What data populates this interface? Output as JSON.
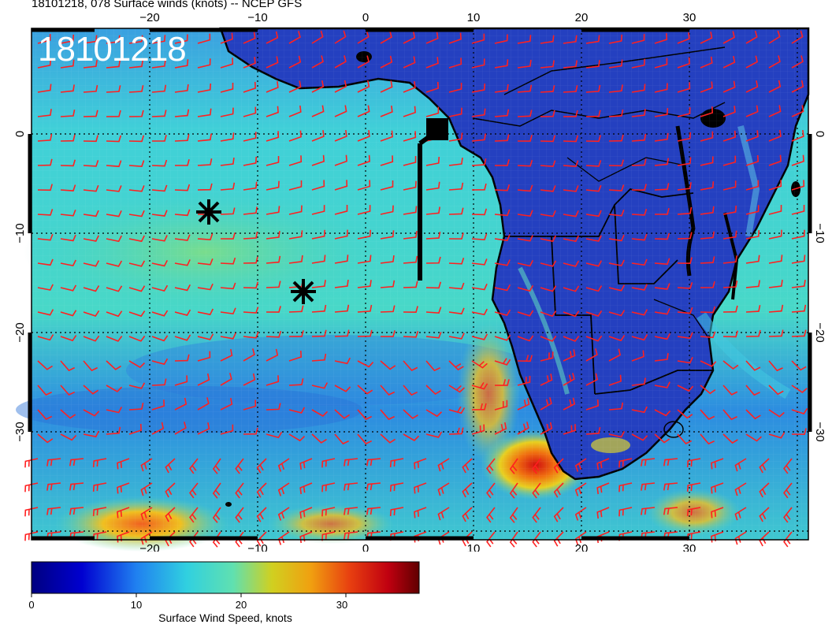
{
  "header": {
    "title": "18101218, 078 Surface winds (knots) -- NCEP GFS",
    "date_overlay": "18101218"
  },
  "map": {
    "lon_ticks": [
      "−20",
      "−10",
      "0",
      "10",
      "20",
      "30"
    ],
    "lat_ticks": [
      "0",
      "−10",
      "−20",
      "−30"
    ],
    "markers": [
      {
        "name": "asterisk-marker-1",
        "lon": -14.5,
        "lat": -8
      },
      {
        "name": "asterisk-marker-2",
        "lon": -6,
        "lat": -16
      }
    ],
    "colors": {
      "barb": "#ff2020",
      "ocean_strong": "#40e0c8",
      "land_weak": "#2038c8",
      "high_wind": "#e03010"
    }
  },
  "colorbar": {
    "ticks": [
      "0",
      "10",
      "20",
      "30"
    ],
    "label": "Surface Wind Speed, knots",
    "range": [
      0,
      37
    ]
  }
}
